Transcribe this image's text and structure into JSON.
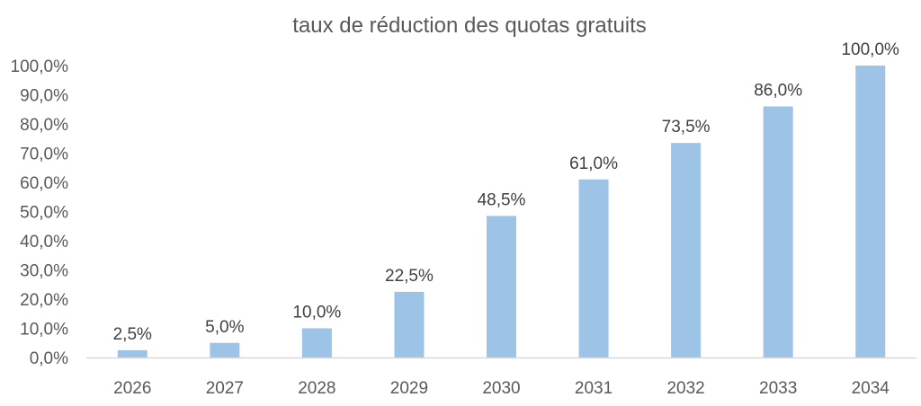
{
  "chart_data": {
    "type": "bar",
    "title": "taux de réduction des quotas gratuits",
    "xlabel": "",
    "ylabel": "",
    "categories": [
      "2026",
      "2027",
      "2028",
      "2029",
      "2030",
      "2031",
      "2032",
      "2033",
      "2034"
    ],
    "values": [
      2.5,
      5.0,
      10.0,
      22.5,
      48.5,
      61.0,
      73.5,
      86.0,
      100.0
    ],
    "data_labels": [
      "2,5%",
      "5,0%",
      "10,0%",
      "22,5%",
      "48,5%",
      "61,0%",
      "73,5%",
      "86,0%",
      "100,0%"
    ],
    "ylim": [
      0,
      100
    ],
    "y_ticks": [
      0,
      10,
      20,
      30,
      40,
      50,
      60,
      70,
      80,
      90,
      100
    ],
    "y_tick_labels": [
      "0,0%",
      "10,0%",
      "20,0%",
      "30,0%",
      "40,0%",
      "50,0%",
      "60,0%",
      "70,0%",
      "80,0%",
      "90,0%",
      "100,0%"
    ],
    "grid": false,
    "legend": "none",
    "colors": {
      "bar": "#9DC3E6",
      "axis": "#D9D9D9",
      "text": "#595959",
      "data_label": "#404040"
    }
  }
}
